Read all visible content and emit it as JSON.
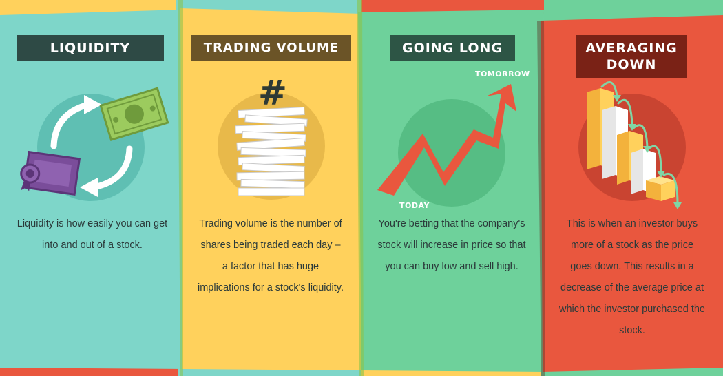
{
  "colors": {
    "teal": "#7ED6C9",
    "yellow": "#FFD15C",
    "green": "#6ED19B",
    "red": "#E9573E",
    "teal_header": "#2E4A45",
    "yellow_header": "#6B5427",
    "green_header": "#2D5545",
    "red_header": "#7A2216"
  },
  "panels": [
    {
      "title": "LIQUIDITY",
      "description": "Liquidity is how easily you can get into and out of a stock.",
      "icons": [
        "arrows-cycle-icon",
        "dollar-bill-icon",
        "stock-certificate-icon"
      ]
    },
    {
      "title": "TRADING VOLUME",
      "description": "Trading volume is the number of shares being traded each day – a factor that has huge implications for a stock's liquidity.",
      "icons": [
        "hash-icon",
        "paper-stack-icon"
      ]
    },
    {
      "title": "GOING LONG",
      "description": "You're betting that the company's stock will increase in price so that you can buy low and sell high.",
      "labels": {
        "start": "TODAY",
        "end": "TOMORROW"
      },
      "icons": [
        "zigzag-up-arrow-icon"
      ]
    },
    {
      "title": "AVERAGING DOWN",
      "description": "This is when an investor buys more of a stock as the price goes down. This results in a decrease of the average price at which the investor purchased the stock.",
      "icons": [
        "descending-blocks-icon"
      ]
    }
  ]
}
